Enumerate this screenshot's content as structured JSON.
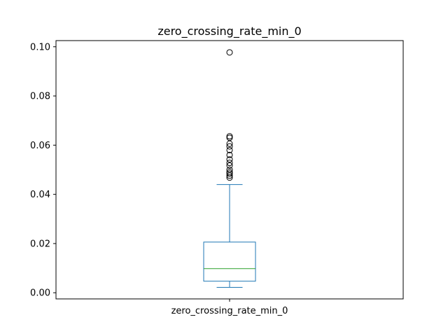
{
  "chart_data": {
    "type": "box",
    "title": "zero_crossing_rate_min_0",
    "xlabel": "",
    "ylabel": "",
    "categories": [
      "zero_crossing_rate_min_0"
    ],
    "ylim": [
      -0.0025,
      0.1025
    ],
    "yticks": [
      0.0,
      0.02,
      0.04,
      0.06,
      0.08,
      0.1
    ],
    "ytick_labels": [
      "0.00",
      "0.02",
      "0.04",
      "0.06",
      "0.08",
      "0.10"
    ],
    "grid": false,
    "box": {
      "whisker_low": 0.0022,
      "q1": 0.0047,
      "median": 0.0098,
      "q3": 0.0206,
      "whisker_high": 0.044
    },
    "outliers": [
      0.0468,
      0.0476,
      0.0484,
      0.049,
      0.05,
      0.0517,
      0.0528,
      0.0542,
      0.056,
      0.058,
      0.0595,
      0.0606,
      0.063,
      0.0636,
      0.0977
    ],
    "colors": {
      "box": "#1f77b4",
      "median": "#2ca02c",
      "outlier": "#000000"
    }
  }
}
